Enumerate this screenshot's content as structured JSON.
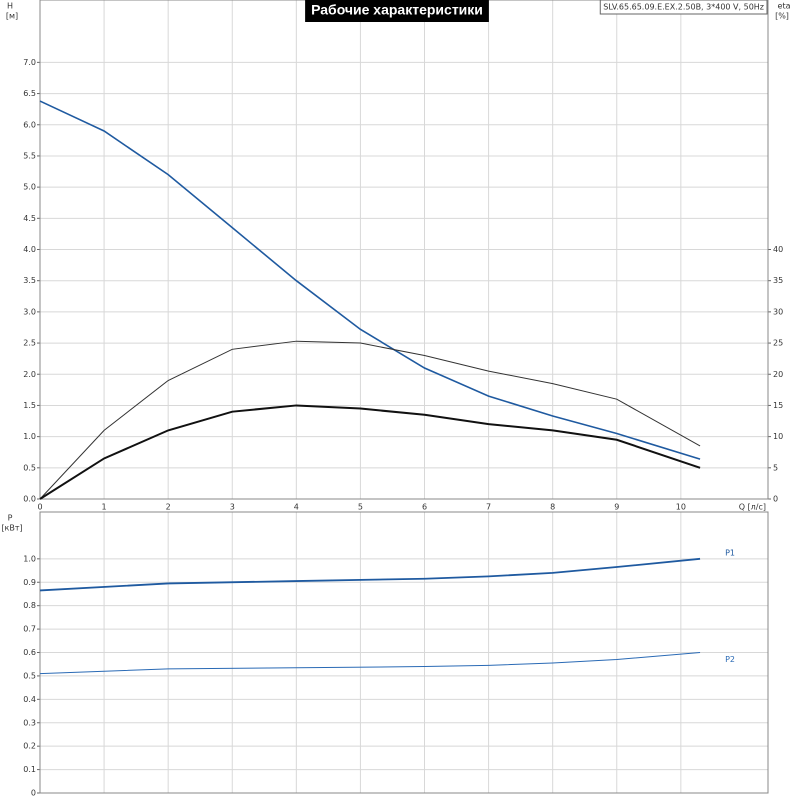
{
  "chart_data": [
    {
      "type": "line",
      "title": "Рабочие характеристики",
      "subtitle": "SLV.65.65.09.E.EX.2.50B, 3*400 V, 50Hz",
      "ylabel": "H",
      "yunit": "[м]",
      "y2label": "eta",
      "y2unit": "[%]",
      "xlabel": "Q [л/с]",
      "xlim": [
        0,
        11.36
      ],
      "xticks": [
        0,
        1,
        2,
        3,
        4,
        5,
        6,
        7,
        8,
        9,
        10
      ],
      "ylim": [
        0,
        8
      ],
      "yticks": [
        {
          "value": 0,
          "label": "0.0"
        },
        0.5,
        {
          "value": 1,
          "label": "1.0"
        },
        1.5,
        {
          "value": 2,
          "label": "2.0"
        },
        2.5,
        {
          "value": 3,
          "label": "3.0"
        },
        3.5,
        {
          "value": 4,
          "label": "4.0"
        },
        4.5,
        {
          "value": 5,
          "label": "5.0"
        },
        5.5,
        {
          "value": 6,
          "label": "6.0"
        },
        6.5,
        {
          "value": 7,
          "label": "7.0"
        }
      ],
      "y2lim": [
        0,
        80
      ],
      "y2ticks": [
        0,
        5,
        10,
        15,
        20,
        25,
        30,
        35,
        40
      ],
      "grid": true,
      "x": [
        0,
        1,
        2,
        3,
        4,
        5,
        6,
        7,
        8,
        9,
        10.3
      ],
      "series": [
        {
          "color": "#1f5aa0",
          "values": [
            6.38,
            5.9,
            5.2,
            4.35,
            3.5,
            2.72,
            2.1,
            1.65,
            1.33,
            1.05,
            0.64
          ]
        },
        {
          "color": "#333333",
          "axis": "y2",
          "values": [
            0,
            11,
            19,
            24,
            25.3,
            25,
            23,
            20.5,
            18.5,
            16,
            8.5
          ]
        },
        {
          "color": "#111111",
          "axis": "y2",
          "values": [
            0,
            6.5,
            11,
            14,
            15,
            14.5,
            13.5,
            12,
            11,
            9.5,
            5
          ]
        }
      ]
    },
    {
      "type": "line",
      "ylabel": "P",
      "yunit": "[кВт]",
      "xlim": [
        0,
        11.36
      ],
      "xticks": [
        0,
        1,
        2,
        3,
        4,
        5,
        6,
        7,
        8,
        9,
        10
      ],
      "ylim": [
        0,
        1.2
      ],
      "yticks": [
        0,
        0.1,
        0.2,
        0.3,
        0.4,
        0.5,
        0.6,
        0.7,
        0.8,
        0.9,
        {
          "value": 1,
          "label": "1.0"
        }
      ],
      "grid": true,
      "x": [
        0,
        2,
        4,
        6,
        7,
        8,
        9,
        10.3
      ],
      "series": [
        {
          "name": "P1",
          "color": "#1f5aa0",
          "values": [
            0.865,
            0.895,
            0.905,
            0.915,
            0.925,
            0.94,
            0.965,
            1.0
          ]
        },
        {
          "name": "P2",
          "color": "#2a6ab5",
          "values": [
            0.51,
            0.53,
            0.535,
            0.54,
            0.545,
            0.555,
            0.57,
            0.6
          ]
        }
      ]
    }
  ]
}
